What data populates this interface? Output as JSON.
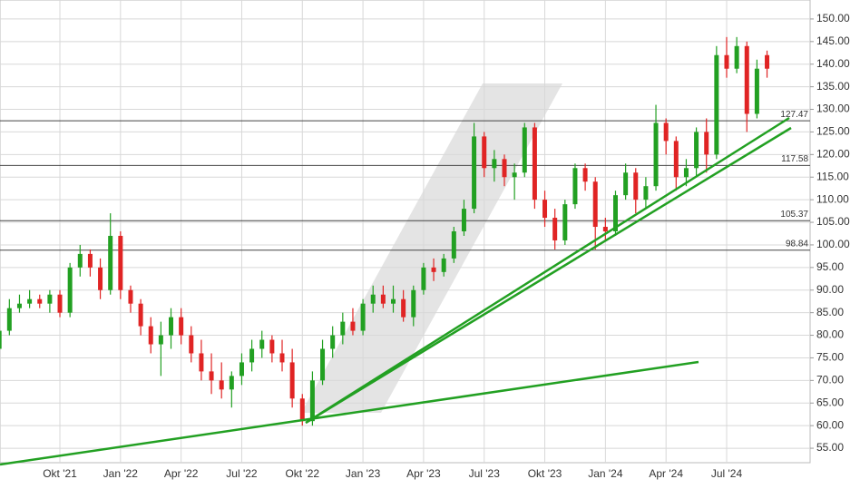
{
  "chart_data": {
    "type": "candlestick",
    "categories": [
      null,
      null,
      null,
      null,
      null,
      null,
      "Okt '21",
      null,
      null,
      null,
      null,
      null,
      "Jan '22",
      null,
      null,
      null,
      null,
      null,
      "Apr '22",
      null,
      null,
      null,
      null,
      null,
      "Jul '22",
      null,
      null,
      null,
      null,
      null,
      "Okt '22",
      null,
      null,
      null,
      null,
      null,
      "Jan '23",
      null,
      null,
      null,
      null,
      null,
      "Apr '23",
      null,
      null,
      null,
      null,
      null,
      "Jul '23",
      null,
      null,
      null,
      null,
      null,
      "Okt '23",
      null,
      null,
      null,
      null,
      null,
      "Jan '24",
      null,
      null,
      null,
      null,
      null,
      "Apr '24",
      null,
      null,
      null,
      null,
      null,
      "Jul '24",
      null,
      null,
      null,
      null
    ],
    "open": [
      77,
      81,
      86,
      87,
      88,
      87,
      89,
      85,
      95,
      98,
      95,
      90,
      102,
      90,
      87,
      82,
      78,
      80,
      84,
      80,
      76,
      72,
      70,
      68,
      71,
      74,
      77,
      79,
      76,
      74,
      66,
      61,
      70,
      77,
      80,
      83,
      81,
      87,
      89,
      87,
      88,
      84,
      90,
      95,
      94,
      97,
      103,
      108,
      124,
      117,
      119,
      115,
      116,
      126,
      110,
      106,
      101,
      109,
      117,
      114,
      104,
      103,
      111,
      116,
      110,
      113,
      127,
      123,
      115,
      117,
      125,
      120,
      142,
      139,
      144,
      129,
      142
    ],
    "high": [
      82,
      88,
      89,
      90,
      89,
      90,
      90,
      96,
      100,
      99,
      97,
      107,
      103,
      91,
      88,
      84,
      83,
      86,
      86,
      82,
      79,
      76,
      74,
      72,
      76,
      79,
      81,
      80,
      79,
      77,
      67,
      72,
      79,
      82,
      85,
      86,
      88,
      91,
      91,
      91,
      90,
      91,
      96,
      97,
      98,
      104,
      110,
      127,
      125,
      121,
      120,
      118,
      127,
      127,
      112,
      108,
      110,
      118,
      118,
      115,
      106,
      112,
      118,
      117,
      115,
      131,
      128,
      124,
      119,
      126,
      128,
      144,
      146,
      146,
      145,
      141,
      143
    ],
    "low": [
      75,
      80,
      85,
      86,
      86,
      85,
      84,
      84,
      93,
      93,
      88,
      89,
      88,
      85,
      80,
      76,
      71,
      77,
      78,
      74,
      70,
      67,
      66,
      64,
      69,
      72,
      75,
      74,
      72,
      64,
      60,
      60,
      69,
      75,
      78,
      80,
      80,
      85,
      86,
      85,
      83,
      82,
      89,
      92,
      93,
      96,
      102,
      107,
      115,
      114,
      113,
      110,
      115,
      108,
      104,
      99,
      100,
      108,
      112,
      99,
      101,
      102,
      110,
      107,
      108,
      112,
      120,
      112,
      113,
      115,
      116,
      119,
      137,
      138,
      125,
      128,
      137
    ],
    "close": [
      81,
      86,
      87,
      88,
      87,
      89,
      85,
      95,
      98,
      95,
      90,
      102,
      90,
      87,
      82,
      78,
      80,
      84,
      80,
      76,
      72,
      70,
      68,
      71,
      74,
      77,
      79,
      76,
      74,
      66,
      61,
      70,
      77,
      80,
      83,
      81,
      87,
      89,
      87,
      88,
      84,
      90,
      95,
      94,
      97,
      103,
      108,
      124,
      117,
      119,
      115,
      116,
      126,
      110,
      106,
      101,
      109,
      117,
      114,
      104,
      103,
      111,
      116,
      110,
      113,
      127,
      123,
      115,
      117,
      125,
      120,
      142,
      139,
      144,
      129,
      139,
      139
    ],
    "up_color": "#22a022",
    "down_color": "#e02424",
    "ylim": [
      51.8,
      154.2
    ],
    "yticks": [
      {
        "value": 55,
        "label": "55.00"
      },
      {
        "value": 60,
        "label": "60.00"
      },
      {
        "value": 65,
        "label": "65.00"
      },
      {
        "value": 70,
        "label": "70.00"
      },
      {
        "value": 75,
        "label": "75.00"
      },
      {
        "value": 80,
        "label": "80.00"
      },
      {
        "value": 85,
        "label": "85.00"
      },
      {
        "value": 90,
        "label": "90.00"
      },
      {
        "value": 95,
        "label": "95.00"
      },
      {
        "value": 100,
        "label": "100.00"
      },
      {
        "value": 105,
        "label": "105.00"
      },
      {
        "value": 110,
        "label": "110.00"
      },
      {
        "value": 115,
        "label": "115.00"
      },
      {
        "value": 120,
        "label": "120.00"
      },
      {
        "value": 125,
        "label": "125.00"
      },
      {
        "value": 130,
        "label": "130.00"
      },
      {
        "value": 135,
        "label": "135.00"
      },
      {
        "value": 140,
        "label": "140.00"
      },
      {
        "value": 145,
        "label": "145.00"
      },
      {
        "value": 150,
        "label": "150.00"
      }
    ],
    "levels": [
      127.47,
      117.58,
      105.37,
      98.84
    ],
    "grid": true
  }
}
